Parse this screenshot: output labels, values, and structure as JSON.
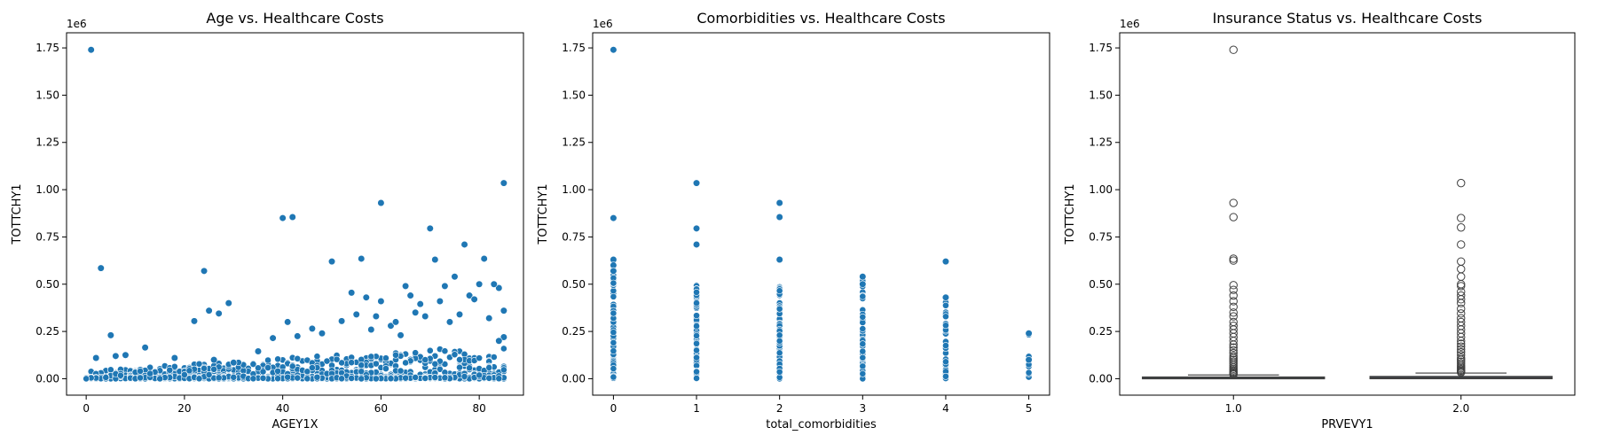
{
  "colors": {
    "scatter": "#1f77b4",
    "box_face": "#3d4f5f",
    "box_edge": "#3f3f3f",
    "flier_edge": "#3f3f3f"
  },
  "chart_data": [
    {
      "type": "scatter",
      "title": "Age vs. Healthcare Costs",
      "xlabel": "AGEY1X",
      "ylabel": "TOTTCHY1",
      "y_offset_text": "1e6",
      "xlim": [
        -4,
        89
      ],
      "ylim": [
        -87000,
        1830000
      ],
      "xticks": [
        0,
        20,
        40,
        60,
        80
      ],
      "xtick_labels": [
        "0",
        "20",
        "40",
        "60",
        "80"
      ],
      "yticks": [
        0,
        250000,
        500000,
        750000,
        1000000,
        1250000,
        1500000,
        1750000
      ],
      "ytick_labels": [
        "0.00",
        "0.25",
        "0.50",
        "0.75",
        "1.00",
        "1.25",
        "1.50",
        "1.75"
      ],
      "outliers": [
        [
          1,
          1740000
        ],
        [
          3,
          585000
        ],
        [
          85,
          1035000
        ],
        [
          40,
          850000
        ],
        [
          42,
          855000
        ],
        [
          60,
          930000
        ],
        [
          70,
          795000
        ],
        [
          56,
          635000
        ],
        [
          50,
          620000
        ],
        [
          24,
          570000
        ],
        [
          5,
          230000
        ],
        [
          12,
          165000
        ],
        [
          22,
          305000
        ],
        [
          25,
          360000
        ],
        [
          27,
          345000
        ],
        [
          29,
          400000
        ],
        [
          71,
          630000
        ],
        [
          77,
          710000
        ],
        [
          81,
          635000
        ],
        [
          84,
          480000
        ],
        [
          75,
          540000
        ],
        [
          65,
          490000
        ],
        [
          80,
          500000
        ],
        [
          78,
          440000
        ],
        [
          73,
          490000
        ],
        [
          54,
          455000
        ],
        [
          57,
          430000
        ],
        [
          60,
          410000
        ],
        [
          66,
          440000
        ],
        [
          68,
          395000
        ],
        [
          2,
          110000
        ],
        [
          8,
          125000
        ],
        [
          6,
          120000
        ],
        [
          18,
          110000
        ],
        [
          26,
          100000
        ],
        [
          30,
          85000
        ],
        [
          35,
          145000
        ],
        [
          38,
          215000
        ],
        [
          41,
          300000
        ],
        [
          48,
          240000
        ],
        [
          52,
          305000
        ],
        [
          46,
          265000
        ],
        [
          43,
          225000
        ],
        [
          58,
          260000
        ],
        [
          62,
          280000
        ],
        [
          64,
          230000
        ],
        [
          69,
          330000
        ],
        [
          72,
          410000
        ],
        [
          74,
          300000
        ],
        [
          76,
          340000
        ],
        [
          79,
          420000
        ],
        [
          83,
          500000
        ],
        [
          82,
          320000
        ],
        [
          85,
          360000
        ],
        [
          85,
          220000
        ],
        [
          84,
          200000
        ],
        [
          67,
          350000
        ],
        [
          63,
          300000
        ],
        [
          59,
          330000
        ],
        [
          55,
          340000
        ]
      ],
      "bulk": {
        "x_min": 0,
        "x_max": 85,
        "count": 1400,
        "seed": 7
      }
    },
    {
      "type": "scatter",
      "title": "Comorbidities vs. Healthcare Costs",
      "xlabel": "total_comorbidities",
      "ylabel": "TOTTCHY1",
      "y_offset_text": "1e6",
      "xlim": [
        -0.25,
        5.25
      ],
      "ylim": [
        -87000,
        1830000
      ],
      "xticks": [
        0,
        1,
        2,
        3,
        4,
        5
      ],
      "xtick_labels": [
        "0",
        "1",
        "2",
        "3",
        "4",
        "5"
      ],
      "yticks": [
        0,
        250000,
        500000,
        750000,
        1000000,
        1250000,
        1500000,
        1750000
      ],
      "ytick_labels": [
        "0.00",
        "0.25",
        "0.50",
        "0.75",
        "1.00",
        "1.25",
        "1.50",
        "1.75"
      ],
      "columns": [
        {
          "x": 0,
          "max": 630000,
          "count": 140,
          "outliers": [
            1740000,
            850000,
            630000,
            600000,
            570000
          ]
        },
        {
          "x": 1,
          "max": 500000,
          "count": 120,
          "outliers": [
            1035000,
            795000,
            710000
          ]
        },
        {
          "x": 2,
          "max": 490000,
          "count": 100,
          "outliers": [
            930000,
            855000,
            630000
          ]
        },
        {
          "x": 3,
          "max": 540000,
          "count": 80,
          "outliers": [
            540000,
            500000
          ]
        },
        {
          "x": 4,
          "max": 430000,
          "count": 55,
          "outliers": [
            620000,
            430000
          ]
        },
        {
          "x": 5,
          "max": 240000,
          "count": 8,
          "outliers": [
            240000,
            100000
          ]
        }
      ]
    },
    {
      "type": "box",
      "title": "Insurance Status vs. Healthcare Costs",
      "xlabel": "PRVEVY1",
      "ylabel": "TOTTCHY1",
      "y_offset_text": "1e6",
      "ylim": [
        -87000,
        1830000
      ],
      "categories": [
        "1.0",
        "2.0"
      ],
      "yticks": [
        0,
        250000,
        500000,
        750000,
        1000000,
        1250000,
        1500000,
        1750000
      ],
      "ytick_labels": [
        "0.00",
        "0.25",
        "0.50",
        "0.75",
        "1.00",
        "1.25",
        "1.50",
        "1.75"
      ],
      "boxes": [
        {
          "q1": 0,
          "median": 3000,
          "q3": 9000,
          "whisker_low": 0,
          "whisker_high": 20000,
          "fliers": [
            1740000,
            930000,
            855000,
            635000,
            625000,
            495000,
            470000,
            440000,
            410000,
            380000,
            350000,
            330000,
            300000,
            280000,
            260000,
            240000,
            220000,
            200000,
            180000,
            165000,
            150000,
            135000,
            120000,
            110000,
            100000,
            90000,
            80000,
            70000,
            60000,
            52000,
            45000,
            38000,
            32000,
            27000,
            23000
          ]
        },
        {
          "q1": 0,
          "median": 5000,
          "q3": 12000,
          "whisker_low": 0,
          "whisker_high": 30000,
          "fliers": [
            1035000,
            850000,
            800000,
            710000,
            620000,
            580000,
            540000,
            500000,
            490000,
            460000,
            440000,
            420000,
            400000,
            370000,
            345000,
            320000,
            300000,
            280000,
            260000,
            240000,
            220000,
            200000,
            185000,
            170000,
            155000,
            140000,
            125000,
            110000,
            100000,
            90000,
            80000,
            70000,
            62000,
            55000,
            48000,
            42000,
            36000,
            33000
          ]
        }
      ]
    }
  ]
}
